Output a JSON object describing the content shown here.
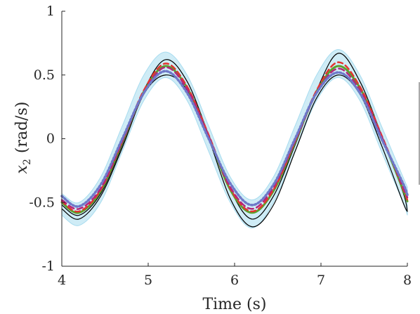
{
  "chart_data": {
    "type": "line",
    "xlabel": "Time (s)",
    "ylabel_symbol": "x",
    "ylabel_subscript": "2",
    "ylabel_unit": "(rad/s)",
    "xlim": [
      4,
      8
    ],
    "ylim": [
      -1,
      1
    ],
    "xticks": [
      4,
      5,
      6,
      7,
      8
    ],
    "xtick_labels": [
      "4",
      "5",
      "6",
      "7",
      "8"
    ],
    "yticks": [
      -1,
      -0.5,
      0,
      0.5,
      1
    ],
    "ytick_labels": [
      "-1",
      "-0.5",
      "0",
      "0.5",
      "1"
    ],
    "grid": false,
    "legend": "none",
    "x_samples": [
      4.0,
      4.2,
      4.45,
      4.7,
      4.95,
      5.2,
      5.45,
      5.7,
      5.95,
      6.2,
      6.45,
      6.7,
      6.95,
      7.2,
      7.45,
      7.7,
      7.95,
      8.0
    ],
    "ensemble_band": {
      "color": "#a8dcef",
      "upper": [
        -0.43,
        -0.5,
        -0.3,
        0.1,
        0.5,
        0.68,
        0.5,
        0.1,
        -0.3,
        -0.48,
        -0.3,
        0.1,
        0.5,
        0.7,
        0.5,
        0.1,
        -0.3,
        -0.38
      ],
      "lower": [
        -0.6,
        -0.68,
        -0.5,
        -0.1,
        0.3,
        0.48,
        0.3,
        -0.1,
        -0.5,
        -0.7,
        -0.5,
        -0.1,
        0.3,
        0.48,
        0.3,
        -0.1,
        -0.5,
        -0.6
      ]
    },
    "series": [
      {
        "color": "#000000",
        "dash": "solid",
        "width": 1.2,
        "values": [
          -0.52,
          -0.6,
          -0.43,
          -0.05,
          0.38,
          0.62,
          0.45,
          0.03,
          -0.4,
          -0.63,
          -0.45,
          -0.05,
          0.38,
          0.67,
          0.45,
          0.03,
          -0.42,
          -0.57
        ]
      },
      {
        "color": "#000000",
        "dash": "solid",
        "width": 1.2,
        "values": [
          -0.55,
          -0.63,
          -0.45,
          -0.07,
          0.35,
          0.5,
          0.38,
          0.0,
          -0.47,
          -0.69,
          -0.52,
          -0.1,
          0.32,
          0.5,
          0.35,
          -0.05,
          -0.5,
          -0.57
        ]
      },
      {
        "color": "#5aa02c",
        "dash": "solid",
        "width": 3,
        "values": [
          -0.5,
          -0.58,
          -0.41,
          -0.03,
          0.37,
          0.57,
          0.4,
          0.02,
          -0.4,
          -0.58,
          -0.41,
          -0.03,
          0.37,
          0.57,
          0.4,
          0.02,
          -0.4,
          -0.49
        ]
      },
      {
        "color": "#e3342f",
        "dash": "7,5",
        "width": 2.5,
        "values": [
          -0.49,
          -0.57,
          -0.4,
          -0.02,
          0.38,
          0.59,
          0.41,
          0.03,
          -0.39,
          -0.57,
          -0.4,
          -0.02,
          0.38,
          0.6,
          0.41,
          0.03,
          -0.39,
          -0.48
        ]
      },
      {
        "color": "#b4247a",
        "dash": "8,5",
        "width": 2.5,
        "values": [
          -0.48,
          -0.55,
          -0.39,
          -0.02,
          0.36,
          0.56,
          0.39,
          0.02,
          -0.38,
          -0.55,
          -0.38,
          -0.02,
          0.36,
          0.55,
          0.38,
          0.02,
          -0.38,
          -0.46
        ]
      },
      {
        "color": "#6e78c8",
        "dash": "2,3",
        "width": 3.5,
        "values": [
          -0.45,
          -0.53,
          -0.36,
          0.0,
          0.36,
          0.53,
          0.36,
          0.0,
          -0.35,
          -0.52,
          -0.36,
          0.0,
          0.36,
          0.52,
          0.36,
          0.0,
          -0.35,
          -0.44
        ]
      }
    ]
  }
}
